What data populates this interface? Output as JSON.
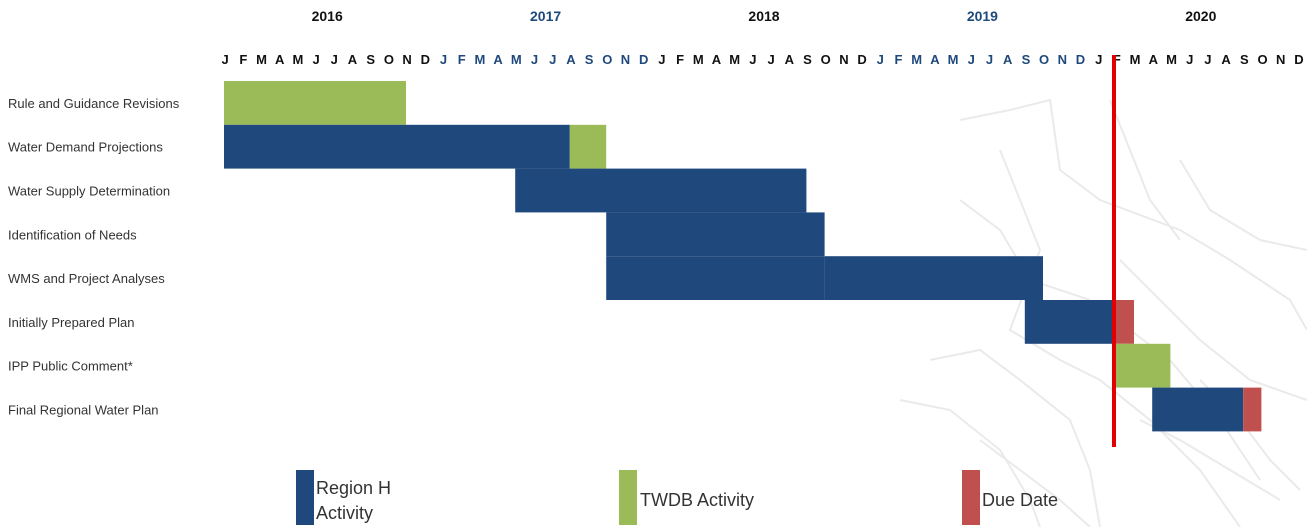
{
  "chart_data": {
    "type": "gantt",
    "timeline": {
      "years": [
        "2016",
        "2017",
        "2018",
        "2019",
        "2020"
      ],
      "months": [
        "J",
        "F",
        "M",
        "A",
        "M",
        "J",
        "J",
        "A",
        "S",
        "O",
        "N",
        "D"
      ]
    },
    "tasks": [
      {
        "label": "Rule and Guidance Revisions",
        "bars": [
          {
            "start": "2016-01",
            "end": "2016-11",
            "category": "twdb"
          }
        ]
      },
      {
        "label": "Water Demand Projections",
        "bars": [
          {
            "start": "2016-01",
            "end": "2017-08",
            "category": "region"
          },
          {
            "start": "2017-08",
            "end": "2017-10",
            "category": "twdb"
          }
        ]
      },
      {
        "label": "Water Supply Determination",
        "bars": [
          {
            "start": "2017-05",
            "end": "2018-09",
            "category": "region"
          }
        ]
      },
      {
        "label": "Identification of Needs",
        "bars": [
          {
            "start": "2017-10",
            "end": "2018-10",
            "category": "region"
          }
        ]
      },
      {
        "label": "WMS and Project Analyses",
        "bars": [
          {
            "start": "2017-10",
            "end": "2018-10",
            "category": "region"
          },
          {
            "start": "2018-10",
            "end": "2019-10",
            "category": "region"
          }
        ]
      },
      {
        "label": "Initially Prepared Plan",
        "bars": [
          {
            "start": "2019-09",
            "end": "2020-02",
            "category": "region"
          },
          {
            "start": "2020-02",
            "end": "2020-03",
            "category": "due"
          }
        ]
      },
      {
        "label": "IPP Public Comment*",
        "bars": [
          {
            "start": "2020-02",
            "end": "2020-05",
            "category": "twdb"
          }
        ]
      },
      {
        "label": "Final Regional Water Plan",
        "bars": [
          {
            "start": "2020-04",
            "end": "2020-09",
            "category": "region"
          },
          {
            "start": "2020-09",
            "end": "2020-10",
            "category": "due"
          }
        ]
      }
    ],
    "current_date_marker": {
      "date": "2020-01.9",
      "color": "#e00000"
    },
    "legend": [
      {
        "key": "region",
        "label": "Region H Activity",
        "color": "#1f497d"
      },
      {
        "key": "twdb",
        "label": "TWDB Activity",
        "color": "#9bbb59"
      },
      {
        "key": "due",
        "label": "Due Date",
        "color": "#c0504d"
      }
    ],
    "colors": {
      "year_black": "#111111",
      "year_blue": "#1f497d",
      "month_black": "#111111",
      "month_blue": "#1f497d",
      "map_lines": "#d9d9d9"
    }
  }
}
